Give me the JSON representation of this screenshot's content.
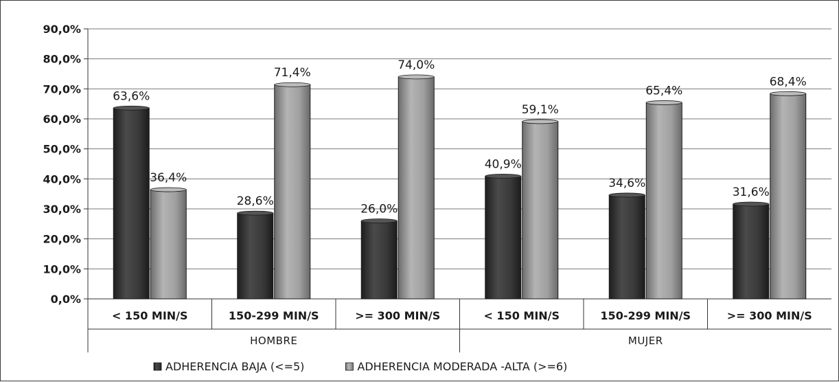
{
  "chart_data": {
    "type": "bar",
    "title": "",
    "xlabel": "",
    "ylabel": "",
    "ylim": [
      0,
      90
    ],
    "y_ticks": [
      "0,0%",
      "10,0%",
      "20,0%",
      "30,0%",
      "40,0%",
      "50,0%",
      "60,0%",
      "70,0%",
      "80,0%",
      "90,0%"
    ],
    "grid": true,
    "legend_position": "bottom",
    "groups": [
      {
        "label": "HOMBRE",
        "span": 3
      },
      {
        "label": "MUJER",
        "span": 3
      }
    ],
    "categories": [
      "< 150 MIN/S",
      "150-299 MIN/S",
      ">= 300 MIN/S",
      "< 150 MIN/S",
      "150-299 MIN/S",
      ">= 300 MIN/S"
    ],
    "series": [
      {
        "name": "ADHERENCIA BAJA (<=5)",
        "color": "#3c3c3c",
        "values": [
          63.6,
          28.6,
          26.0,
          40.9,
          34.6,
          31.6
        ],
        "labels": [
          "63,6%",
          "28,6%",
          "26,0%",
          "40,9%",
          "34,6%",
          "31,6%"
        ]
      },
      {
        "name": "ADHERENCIA MODERADA -ALTA (>=6)",
        "color": "#9a9a9a",
        "values": [
          36.4,
          71.4,
          74.0,
          59.1,
          65.4,
          68.4
        ],
        "labels": [
          "36,4%",
          "71,4%",
          "74,0%",
          "59,1%",
          "65,4%",
          "68,4%"
        ]
      }
    ]
  }
}
